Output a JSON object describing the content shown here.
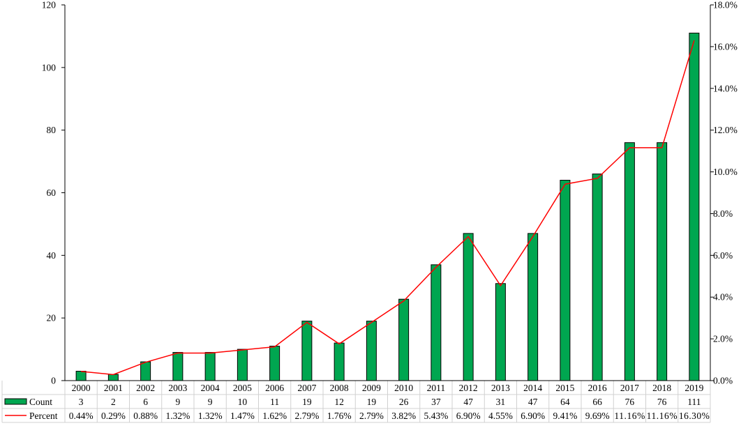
{
  "chart_data": {
    "type": "bar",
    "categories": [
      "2000",
      "2001",
      "2002",
      "2003",
      "2004",
      "2005",
      "2006",
      "2007",
      "2008",
      "2009",
      "2010",
      "2011",
      "2012",
      "2013",
      "2014",
      "2015",
      "2016",
      "2017",
      "2018",
      "2019"
    ],
    "series": [
      {
        "name": "Count",
        "type": "bar",
        "axis": "left",
        "values": [
          3,
          2,
          6,
          9,
          9,
          10,
          11,
          19,
          12,
          19,
          26,
          37,
          47,
          31,
          47,
          64,
          66,
          76,
          76,
          111
        ],
        "labels": [
          "3",
          "2",
          "6",
          "9",
          "9",
          "10",
          "11",
          "19",
          "12",
          "19",
          "26",
          "37",
          "47",
          "31",
          "47",
          "64",
          "66",
          "76",
          "76",
          "111"
        ],
        "color": "#00a650"
      },
      {
        "name": "Percent",
        "type": "line",
        "axis": "right",
        "values": [
          0.44,
          0.29,
          0.88,
          1.32,
          1.32,
          1.47,
          1.62,
          2.79,
          1.76,
          2.79,
          3.82,
          5.43,
          6.9,
          4.55,
          6.9,
          9.41,
          9.69,
          11.16,
          11.16,
          16.3
        ],
        "labels": [
          "0.44%",
          "0.29%",
          "0.88%",
          "1.32%",
          "1.32%",
          "1.47%",
          "1.62%",
          "2.79%",
          "1.76%",
          "2.79%",
          "3.82%",
          "5.43%",
          "6.90%",
          "4.55%",
          "6.90%",
          "9.41%",
          "9.69%",
          "11.16%",
          "11.16%",
          "16.30%"
        ],
        "color": "#ff0000"
      }
    ],
    "ylim_left": [
      0,
      120
    ],
    "left_ticks": [
      "0",
      "20",
      "40",
      "60",
      "80",
      "100",
      "120"
    ],
    "ylim_right": [
      0,
      18
    ],
    "right_ticks": [
      "0.0%",
      "2.0%",
      "4.0%",
      "6.0%",
      "8.0%",
      "10.0%",
      "12.0%",
      "14.0%",
      "16.0%",
      "18.0%"
    ],
    "grid": false,
    "legend": "data-table"
  }
}
